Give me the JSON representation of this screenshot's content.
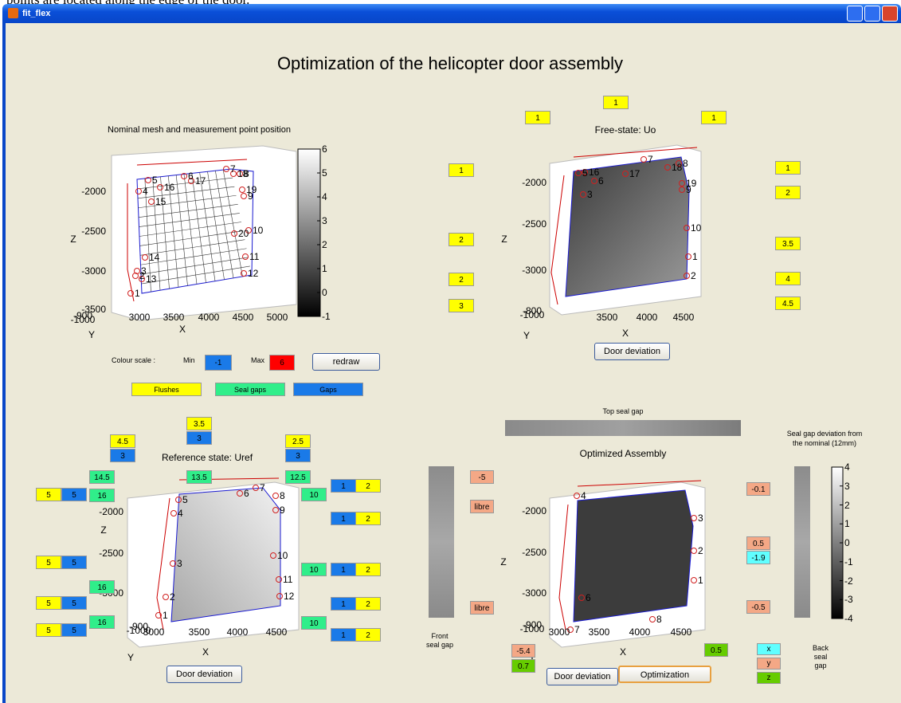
{
  "caption": "points are located along the edge of the door.",
  "window_title": "fit_flex",
  "title": "Optimization of the helicopter door assembly",
  "plots": [
    {
      "title": "Nominal mesh and measurement point position",
      "x_label": "X",
      "y_label": "Y",
      "z_label": "Z",
      "x_ticks": [
        3000,
        3500,
        4000,
        4500,
        5000
      ],
      "y_ticks": [
        -900,
        -1000
      ],
      "z_ticks": [
        -2000,
        -2500,
        -3000,
        -3500
      ],
      "point_labels": [
        "1",
        "2",
        "3",
        "4",
        "5",
        "6",
        "7",
        "8",
        "9",
        "10",
        "11",
        "12",
        "13",
        "14",
        "15",
        "16",
        "17",
        "18",
        "19",
        "20"
      ]
    },
    {
      "title": "Free-state: Uo",
      "x_label": "X",
      "y_label": "Y",
      "z_label": "Z",
      "x_ticks": [
        3500,
        4000,
        4500
      ],
      "y_ticks": [
        -800,
        -1000
      ],
      "z_ticks": [
        -2000,
        -2500,
        -3000
      ],
      "point_labels": [
        "5",
        "6",
        "16",
        "17",
        "7",
        "18",
        "8",
        "19",
        "9",
        "10",
        "1",
        "2",
        "3"
      ]
    },
    {
      "title": "Reference state: Uref",
      "x_label": "X",
      "y_label": "Y",
      "z_label": "Z",
      "x_ticks": [
        3000,
        3500,
        4000,
        4500
      ],
      "y_ticks": [
        -900,
        -1000
      ],
      "z_ticks": [
        -2000,
        -2500,
        -3000
      ],
      "point_labels": [
        "1",
        "2",
        "3",
        "4",
        "5",
        "6",
        "7",
        "8",
        "9",
        "10",
        "11",
        "12"
      ]
    },
    {
      "title": "Optimized Assembly",
      "x_label": "X",
      "y_label": "Y",
      "z_label": "Z",
      "x_ticks": [
        3000,
        3500,
        4000,
        4500
      ],
      "y_ticks": [
        -900,
        -1000
      ],
      "z_ticks": [
        -2000,
        -2500,
        -3000
      ],
      "point_labels": [
        "1",
        "2",
        "3",
        "4",
        "6",
        "7",
        "8"
      ]
    }
  ],
  "colorbars": [
    {
      "ticks": [
        6,
        5,
        4,
        3,
        2,
        1,
        0,
        -1
      ]
    },
    {
      "ticks": [
        4,
        3,
        2,
        1,
        0,
        -1,
        -2,
        -3,
        -4
      ]
    }
  ],
  "colour_scale": {
    "label": "Colour scale :",
    "min_label": "Min",
    "min": -1,
    "max_label": "Max",
    "max": 6,
    "button": "redraw"
  },
  "legend": [
    "Flushes",
    "Seal gaps",
    "Gaps"
  ],
  "free_state_boxes": [
    1,
    1,
    1,
    1,
    2,
    2,
    3,
    1,
    2,
    3.5,
    4,
    4.5
  ],
  "reference_boxes": [
    3.5,
    3,
    4.5,
    3,
    2.5,
    3,
    14.5,
    13.5,
    12.5,
    16,
    5,
    5,
    5,
    5,
    5,
    5,
    5,
    5,
    16,
    16,
    10,
    1,
    2,
    1,
    2,
    10,
    1,
    2,
    1,
    2,
    10,
    1,
    2
  ],
  "optimized_boxes": [
    -5,
    "libre",
    "libre",
    -0.1,
    0.5,
    -1.9,
    -0.5,
    -5.4,
    0.7,
    0.5
  ],
  "buttons": [
    "Door deviation",
    "Door deviation",
    "Door deviation",
    "Optimization"
  ],
  "seal_labels": {
    "top": "Top seal gap",
    "front": "Front seal gap",
    "back": "Back seal gap",
    "deviation": "Seal gap deviation from the nominal (12mm)"
  },
  "xyz_legend": [
    "x",
    "y",
    "z"
  ]
}
